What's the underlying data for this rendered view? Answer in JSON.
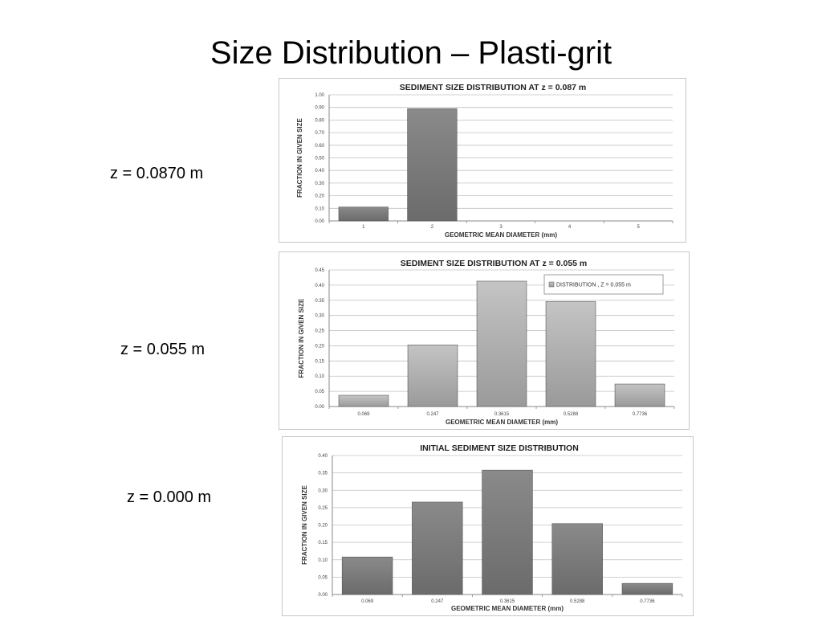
{
  "slide": {
    "title": "Size Distribution – Plasti-grit",
    "labels": [
      "z = 0.0870 m",
      "z = 0.055 m",
      "z = 0.000 m"
    ]
  },
  "colors": {
    "bar_dark": "#6b6b6b",
    "bar_dark_light": "#8a8a8a",
    "bar_light": "#9a9a9a",
    "bar_light_light": "#c4c4c4",
    "grid": "#c0c0c0"
  },
  "chart_data": [
    {
      "type": "bar",
      "title": "SEDIMENT SIZE DISTRIBUTION AT z = 0.087 m",
      "xlabel": "GEOMETRIC MEAN DIAMETER (mm)",
      "ylabel": "FRACTION IN GIVEN SIZE",
      "categories": [
        "1",
        "2",
        "3",
        "4",
        "5"
      ],
      "values": [
        0.11,
        0.89,
        0,
        0,
        0
      ],
      "ylim": [
        0,
        1.0
      ],
      "yticks": [
        "0.00",
        "0.10",
        "0.20",
        "0.30",
        "0.40",
        "0.50",
        "0.60",
        "0.70",
        "0.80",
        "0.90",
        "1.00"
      ],
      "grid": true,
      "legend": null,
      "style": "dark"
    },
    {
      "type": "bar",
      "title": "SEDIMENT SIZE DISTRIBUTION AT z = 0.055 m",
      "xlabel": "GEOMETRIC MEAN DIAMETER (mm)",
      "ylabel": "FRACTION IN GIVEN SIZE",
      "categories": [
        "0.069",
        "0.247",
        "0.3615",
        "0.5288",
        "0.7736"
      ],
      "series": [
        {
          "name": "DISTRIBUTION , Z = 0.055 m",
          "values": [
            0.037,
            0.203,
            0.413,
            0.346,
            0.074
          ]
        }
      ],
      "ylim": [
        0,
        0.45
      ],
      "yticks": [
        "0.00",
        "0.05",
        "0.10",
        "0.15",
        "0.20",
        "0.25",
        "0.30",
        "0.35",
        "0.40",
        "0.45"
      ],
      "grid": true,
      "legend": "top-right",
      "style": "light"
    },
    {
      "type": "bar",
      "title": "INITIAL SEDIMENT SIZE DISTRIBUTION",
      "xlabel": "GEOMETRIC MEAN DIAMETER (mm)",
      "ylabel": "FRACTION IN GIVEN SIZE",
      "categories": [
        "0.069",
        "0.247",
        "0.3615",
        "0.5288",
        "0.7736"
      ],
      "values": [
        0.108,
        0.266,
        0.358,
        0.204,
        0.032
      ],
      "ylim": [
        0,
        0.4
      ],
      "yticks": [
        "0.00",
        "0.05",
        "0.10",
        "0.15",
        "0.20",
        "0.25",
        "0.30",
        "0.35",
        "0.40"
      ],
      "grid": true,
      "legend": null,
      "style": "dark"
    }
  ]
}
